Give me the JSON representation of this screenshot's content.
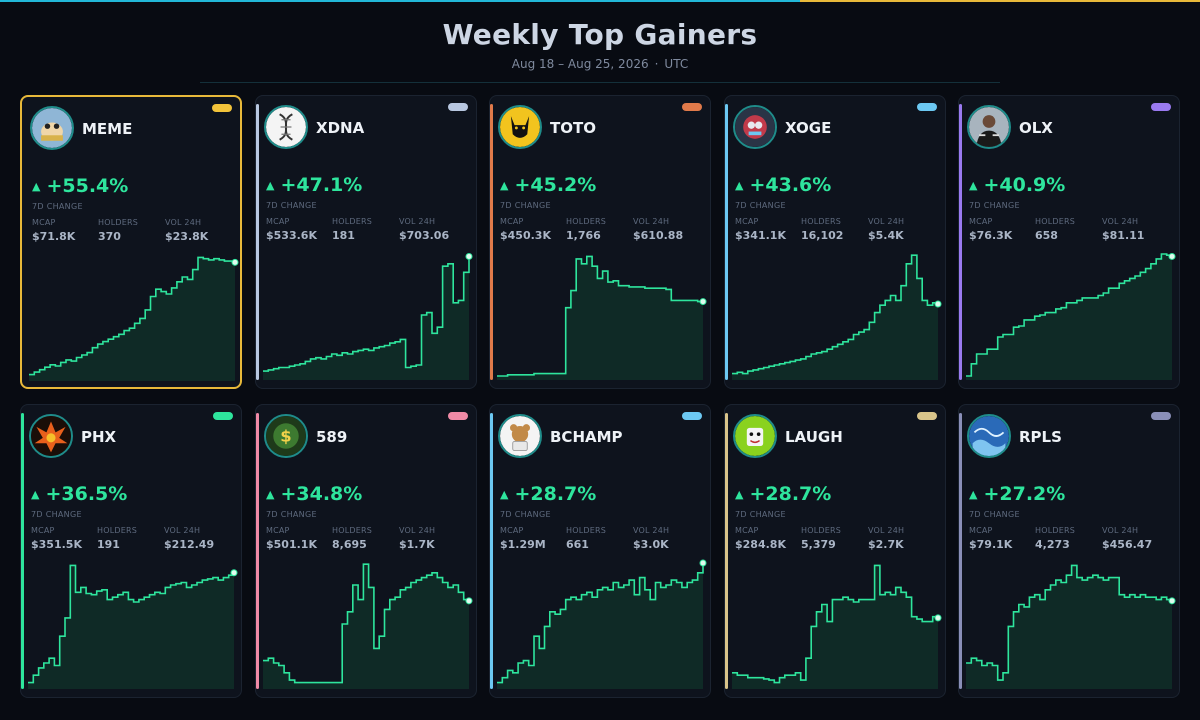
{
  "header": {
    "title": "Weekly Top Gainers",
    "date_range": "Aug 18 – Aug 25, 2026",
    "timezone": "UTC"
  },
  "labels": {
    "change": "7D CHANGE",
    "mcap": "MCAP",
    "holders": "HOLDERS",
    "vol": "VOL 24H"
  },
  "colors": {
    "gain": "#2ee59d",
    "selected_border": "#e8b93a",
    "chart_fill": "#0f2a26"
  },
  "cards": [
    {
      "ticker": "MEME",
      "change": "+55.4%",
      "mcap": "$71.8K",
      "holders": "370",
      "vol": "$23.8K",
      "accent": "#f2c33a",
      "icon": "meme-frog-avatar-icon",
      "selected": true,
      "series": [
        0.02,
        0.04,
        0.06,
        0.08,
        0.1,
        0.09,
        0.12,
        0.14,
        0.13,
        0.16,
        0.18,
        0.2,
        0.24,
        0.27,
        0.29,
        0.31,
        0.33,
        0.35,
        0.38,
        0.4,
        0.44,
        0.48,
        0.55,
        0.66,
        0.72,
        0.7,
        0.68,
        0.73,
        0.78,
        0.82,
        0.8,
        0.88,
        0.98,
        0.97,
        0.96,
        0.97,
        0.96,
        0.95,
        0.95,
        0.94
      ]
    },
    {
      "ticker": "XDNA",
      "change": "+47.1%",
      "mcap": "$533.6K",
      "holders": "181",
      "vol": "$703.06",
      "accent": "#b8c7e0",
      "icon": "dna-helix-icon",
      "selected": false,
      "series": [
        0.04,
        0.05,
        0.06,
        0.07,
        0.07,
        0.08,
        0.09,
        0.1,
        0.12,
        0.14,
        0.15,
        0.14,
        0.16,
        0.18,
        0.17,
        0.19,
        0.18,
        0.2,
        0.21,
        0.22,
        0.21,
        0.23,
        0.24,
        0.25,
        0.27,
        0.28,
        0.3,
        0.07,
        0.08,
        0.09,
        0.5,
        0.52,
        0.35,
        0.4,
        0.9,
        0.92,
        0.6,
        0.62,
        0.85,
        0.98
      ]
    },
    {
      "ticker": "TOTO",
      "change": "+45.2%",
      "mcap": "$450.3K",
      "holders": "1,766",
      "vol": "$610.88",
      "accent": "#e07a4a",
      "icon": "black-dog-avatar-icon",
      "selected": false,
      "series": [
        0.0,
        0.0,
        0.01,
        0.01,
        0.01,
        0.01,
        0.01,
        0.02,
        0.02,
        0.02,
        0.02,
        0.02,
        0.02,
        0.56,
        0.7,
        0.96,
        0.92,
        0.98,
        0.9,
        0.8,
        0.86,
        0.77,
        0.78,
        0.74,
        0.74,
        0.73,
        0.73,
        0.73,
        0.72,
        0.72,
        0.72,
        0.72,
        0.71,
        0.62,
        0.62,
        0.62,
        0.62,
        0.62,
        0.61,
        0.61
      ]
    },
    {
      "ticker": "XOGE",
      "change": "+43.6%",
      "mcap": "$341.1K",
      "holders": "16,102",
      "vol": "$5.4K",
      "accent": "#6cc8f2",
      "icon": "robot-dog-avatar-icon",
      "selected": false,
      "series": [
        0.02,
        0.03,
        0.02,
        0.04,
        0.05,
        0.06,
        0.07,
        0.08,
        0.09,
        0.1,
        0.11,
        0.12,
        0.13,
        0.14,
        0.16,
        0.18,
        0.19,
        0.2,
        0.22,
        0.24,
        0.26,
        0.28,
        0.3,
        0.34,
        0.36,
        0.38,
        0.44,
        0.52,
        0.58,
        0.62,
        0.66,
        0.62,
        0.74,
        0.92,
        0.99,
        0.8,
        0.62,
        0.58,
        0.6,
        0.59
      ]
    },
    {
      "ticker": "OLX",
      "change": "+40.9%",
      "mcap": "$76.3K",
      "holders": "658",
      "vol": "$81.11",
      "accent": "#9a7af0",
      "icon": "man-portrait-avatar-icon",
      "selected": false,
      "series": [
        0.0,
        0.1,
        0.18,
        0.18,
        0.22,
        0.22,
        0.32,
        0.34,
        0.34,
        0.4,
        0.41,
        0.46,
        0.46,
        0.49,
        0.5,
        0.52,
        0.52,
        0.55,
        0.56,
        0.6,
        0.6,
        0.62,
        0.64,
        0.64,
        0.64,
        0.66,
        0.68,
        0.72,
        0.72,
        0.76,
        0.78,
        0.8,
        0.82,
        0.85,
        0.88,
        0.92,
        0.96,
        1.0,
        0.99,
        0.98
      ]
    },
    {
      "ticker": "PHX",
      "change": "+36.5%",
      "mcap": "$351.5K",
      "holders": "191",
      "vol": "$212.49",
      "accent": "#2ee59d",
      "icon": "phoenix-avatar-icon",
      "selected": false,
      "series": [
        0.02,
        0.08,
        0.14,
        0.18,
        0.22,
        0.16,
        0.4,
        0.55,
        0.98,
        0.76,
        0.8,
        0.75,
        0.74,
        0.77,
        0.78,
        0.7,
        0.72,
        0.74,
        0.76,
        0.7,
        0.68,
        0.7,
        0.72,
        0.74,
        0.76,
        0.75,
        0.8,
        0.82,
        0.83,
        0.84,
        0.8,
        0.82,
        0.84,
        0.86,
        0.87,
        0.88,
        0.86,
        0.88,
        0.9,
        0.92
      ]
    },
    {
      "ticker": "589",
      "change": "+34.8%",
      "mcap": "$501.1K",
      "holders": "8,695",
      "vol": "$1.7K",
      "accent": "#f08aa6",
      "icon": "money-character-avatar-icon",
      "selected": false,
      "series": [
        0.2,
        0.22,
        0.18,
        0.16,
        0.1,
        0.04,
        0.02,
        0.02,
        0.02,
        0.02,
        0.02,
        0.02,
        0.02,
        0.02,
        0.02,
        0.5,
        0.6,
        0.82,
        0.7,
        0.99,
        0.8,
        0.3,
        0.4,
        0.62,
        0.7,
        0.72,
        0.78,
        0.8,
        0.84,
        0.86,
        0.88,
        0.9,
        0.92,
        0.88,
        0.84,
        0.8,
        0.82,
        0.76,
        0.7,
        0.69
      ]
    },
    {
      "ticker": "BCHAMP",
      "change": "+28.7%",
      "mcap": "$1.29M",
      "holders": "661",
      "vol": "$3.0K",
      "accent": "#6cc8f2",
      "icon": "bear-champ-avatar-icon",
      "selected": false,
      "series": [
        0.02,
        0.06,
        0.12,
        0.1,
        0.18,
        0.2,
        0.16,
        0.4,
        0.3,
        0.48,
        0.6,
        0.58,
        0.62,
        0.7,
        0.72,
        0.7,
        0.74,
        0.76,
        0.72,
        0.78,
        0.8,
        0.78,
        0.84,
        0.8,
        0.82,
        0.86,
        0.74,
        0.88,
        0.78,
        0.7,
        0.84,
        0.8,
        0.82,
        0.86,
        0.84,
        0.8,
        0.84,
        0.86,
        0.92,
        1.0
      ]
    },
    {
      "ticker": "LAUGH",
      "change": "+28.7%",
      "mcap": "$284.8K",
      "holders": "5,379",
      "vol": "$2.7K",
      "accent": "#d9c48a",
      "icon": "laugh-frog-avatar-icon",
      "selected": false,
      "series": [
        0.1,
        0.08,
        0.08,
        0.06,
        0.06,
        0.06,
        0.05,
        0.04,
        0.02,
        0.06,
        0.08,
        0.08,
        0.1,
        0.04,
        0.22,
        0.48,
        0.6,
        0.66,
        0.52,
        0.7,
        0.7,
        0.72,
        0.7,
        0.68,
        0.7,
        0.7,
        0.7,
        0.98,
        0.74,
        0.76,
        0.74,
        0.8,
        0.76,
        0.72,
        0.56,
        0.54,
        0.52,
        0.52,
        0.56,
        0.55
      ]
    },
    {
      "ticker": "RPLS",
      "change": "+27.2%",
      "mcap": "$79.1K",
      "holders": "4,273",
      "vol": "$456.47",
      "accent": "#8a8fb8",
      "icon": "ripples-wave-avatar-icon",
      "selected": false,
      "series": [
        0.18,
        0.22,
        0.2,
        0.16,
        0.18,
        0.16,
        0.04,
        0.1,
        0.48,
        0.6,
        0.66,
        0.64,
        0.72,
        0.74,
        0.7,
        0.78,
        0.82,
        0.86,
        0.84,
        0.9,
        0.98,
        0.88,
        0.86,
        0.88,
        0.9,
        0.88,
        0.86,
        0.88,
        0.88,
        0.74,
        0.72,
        0.74,
        0.72,
        0.74,
        0.72,
        0.72,
        0.7,
        0.72,
        0.7,
        0.69
      ]
    }
  ]
}
